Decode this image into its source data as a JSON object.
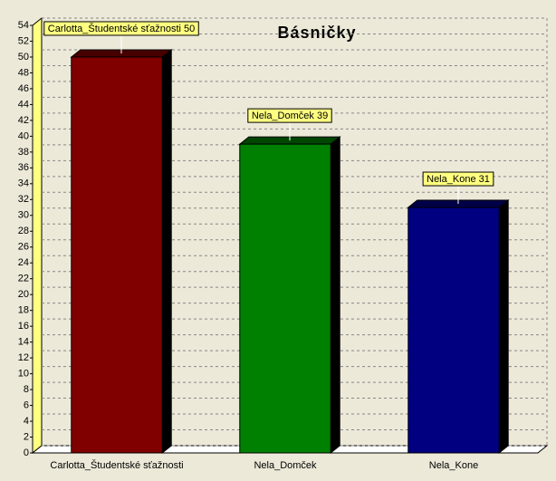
{
  "chart_data": {
    "type": "bar",
    "title": "Básničky",
    "categories": [
      "Carlotta_Študentské sťažnosti",
      "Nela_Domček",
      "Nela_Kone"
    ],
    "values": [
      50,
      39,
      31
    ],
    "value_labels": [
      "Carlotta_Študentské sťažnosti 50",
      "Nela_Domček 39",
      "Nela_Kone 31"
    ],
    "colors": [
      "#800000",
      "#008000",
      "#000080"
    ],
    "ylim": [
      0,
      54
    ],
    "yticks": [
      0,
      2,
      4,
      6,
      8,
      10,
      12,
      14,
      16,
      18,
      20,
      22,
      24,
      26,
      28,
      30,
      32,
      34,
      36,
      38,
      40,
      42,
      44,
      46,
      48,
      50,
      52,
      54
    ],
    "grid": true
  }
}
